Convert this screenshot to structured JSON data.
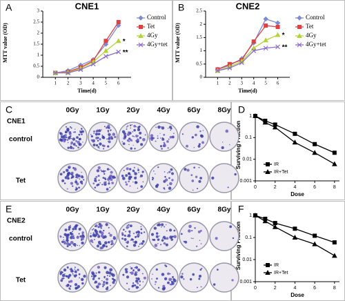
{
  "chart_data": [
    {
      "type": "line",
      "panel": "A",
      "title": "CNE1",
      "x_label": "Time(d)",
      "y_label": "MTT value (OD)",
      "x": [
        1,
        2,
        3,
        4,
        5,
        6
      ],
      "xlim": [
        0,
        7
      ],
      "xticks": [
        1,
        2,
        3,
        4,
        5,
        6
      ],
      "ylim": [
        0,
        3
      ],
      "yticks": [
        0,
        0.5,
        1,
        1.5,
        2,
        2.5,
        3
      ],
      "legend": "right",
      "series": [
        {
          "name": "Control",
          "color": "#7b8bd6",
          "marker": "diamond",
          "values": [
            0.2,
            0.3,
            0.55,
            0.8,
            1.5,
            2.35
          ]
        },
        {
          "name": "Tet",
          "color": "#e04040",
          "marker": "square",
          "values": [
            0.2,
            0.25,
            0.45,
            0.75,
            1.65,
            2.5
          ]
        },
        {
          "name": "4Gy",
          "color": "#b5d334",
          "marker": "triangle",
          "values": [
            0.2,
            0.22,
            0.4,
            0.7,
            1.2,
            1.65
          ],
          "annotation": "*"
        },
        {
          "name": "4Gy+tet",
          "color": "#8a6bc7",
          "marker": "cross",
          "values": [
            0.2,
            0.2,
            0.35,
            0.6,
            0.95,
            1.15
          ],
          "annotation": "**"
        }
      ]
    },
    {
      "type": "line",
      "panel": "B",
      "title": "CNE2",
      "x_label": "Time(d)",
      "y_label": "MTT value (OD)",
      "x": [
        1,
        2,
        3,
        4,
        5,
        6
      ],
      "xlim": [
        0,
        7
      ],
      "xticks": [
        1,
        2,
        3,
        4,
        5,
        6
      ],
      "ylim": [
        0,
        2.5
      ],
      "yticks": [
        0,
        0.5,
        1,
        1.5,
        2,
        2.5
      ],
      "legend": "right",
      "series": [
        {
          "name": "Control",
          "color": "#7b8bd6",
          "marker": "diamond",
          "values": [
            0.3,
            0.45,
            0.7,
            1.3,
            2.2,
            2.05
          ]
        },
        {
          "name": "Tet",
          "color": "#e04040",
          "marker": "square",
          "values": [
            0.3,
            0.5,
            0.65,
            1.35,
            1.95,
            1.9
          ]
        },
        {
          "name": "4Gy",
          "color": "#b5d334",
          "marker": "triangle",
          "values": [
            0.25,
            0.4,
            0.6,
            1.1,
            1.4,
            1.6
          ],
          "annotation": "*"
        },
        {
          "name": "4Gy+tet",
          "color": "#8a6bc7",
          "marker": "cross",
          "values": [
            0.25,
            0.35,
            0.55,
            1.0,
            1.1,
            1.15
          ],
          "annotation": "**"
        }
      ]
    },
    {
      "type": "line",
      "panel": "D",
      "x_label": "Dose",
      "y_label": "Surviving Fraction",
      "log_y": true,
      "x": [
        0,
        1,
        2,
        4,
        6,
        8
      ],
      "xlim": [
        0,
        8.5
      ],
      "xticks": [
        0,
        2,
        4,
        6,
        8
      ],
      "ylim": [
        0.001,
        1
      ],
      "yticks": [
        0.001,
        0.01,
        0.1,
        1
      ],
      "legend": "lower left",
      "series": [
        {
          "name": "IR",
          "color": "#000000",
          "marker": "square",
          "values": [
            1,
            0.6,
            0.4,
            0.15,
            0.05,
            0.02
          ]
        },
        {
          "name": "IR+Tet",
          "color": "#000000",
          "marker": "triangle",
          "values": [
            1,
            0.5,
            0.3,
            0.06,
            0.02,
            0.006
          ]
        }
      ]
    },
    {
      "type": "line",
      "panel": "F",
      "x_label": "Dose",
      "y_label": "Surviving Fraction",
      "log_y": true,
      "x": [
        0,
        1,
        2,
        4,
        6,
        8
      ],
      "xlim": [
        0,
        8.5
      ],
      "xticks": [
        0,
        2,
        4,
        6,
        8
      ],
      "ylim": [
        0.001,
        1
      ],
      "yticks": [
        0.001,
        0.01,
        0.1,
        1
      ],
      "legend": "lower left",
      "series": [
        {
          "name": "IR",
          "color": "#000000",
          "marker": "square",
          "values": [
            1,
            0.7,
            0.45,
            0.25,
            0.12,
            0.06
          ]
        },
        {
          "name": "IR+Tet",
          "color": "#000000",
          "marker": "triangle",
          "values": [
            1,
            0.55,
            0.3,
            0.1,
            0.05,
            0.015
          ]
        }
      ]
    }
  ],
  "plates": [
    {
      "panel": "C",
      "cell_line": "CNE1",
      "doses": [
        "0Gy",
        "1Gy",
        "2Gy",
        "4Gy",
        "6Gy",
        "8Gy"
      ],
      "rows": [
        "control",
        "Tet"
      ]
    },
    {
      "panel": "E",
      "cell_line": "CNE2",
      "doses": [
        "0Gy",
        "1Gy",
        "2Gy",
        "4Gy",
        "6Gy",
        "8Gy"
      ],
      "rows": [
        "control",
        "Tet"
      ]
    }
  ]
}
